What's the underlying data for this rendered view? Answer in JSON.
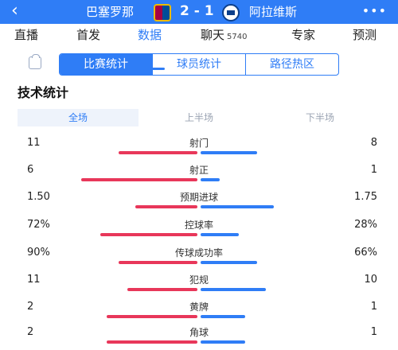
{
  "header": {
    "back_icon": "‹",
    "home_team": "巴塞罗那",
    "score": "2 - 1",
    "away_team": "阿拉维斯",
    "more": "•••",
    "home_badge_icon": "barcelona-crest-icon",
    "away_badge_icon": "alaves-crest-icon"
  },
  "tabs": [
    {
      "label": "直播"
    },
    {
      "label": "首发"
    },
    {
      "label": "数据"
    },
    {
      "label": "聊天",
      "count": "5740"
    },
    {
      "label": "专家"
    },
    {
      "label": "预测"
    }
  ],
  "subtabs": [
    "比赛统计",
    "球员统计",
    "路径热区"
  ],
  "section_title": "技术统计",
  "periods": [
    "全场",
    "上半场",
    "下半场"
  ],
  "stats": [
    {
      "name": "射门",
      "home": "11",
      "away": "8",
      "home_share": 0.58,
      "away_share": 0.42
    },
    {
      "name": "射正",
      "home": "6",
      "away": "1",
      "home_share": 0.86,
      "away_share": 0.14
    },
    {
      "name": "预期进球",
      "home": "1.50",
      "away": "1.75",
      "home_share": 0.46,
      "away_share": 0.54
    },
    {
      "name": "控球率",
      "home": "72%",
      "away": "28%",
      "home_share": 0.72,
      "away_share": 0.28
    },
    {
      "name": "传球成功率",
      "home": "90%",
      "away": "66%",
      "home_share": 0.58,
      "away_share": 0.42
    },
    {
      "name": "犯规",
      "home": "11",
      "away": "10",
      "home_share": 0.52,
      "away_share": 0.48
    },
    {
      "name": "黄牌",
      "home": "2",
      "away": "1",
      "home_share": 0.67,
      "away_share": 0.33
    },
    {
      "name": "角球",
      "home": "2",
      "away": "1",
      "home_share": 0.67,
      "away_share": 0.33
    }
  ],
  "colors": {
    "accent": "#2f7df6",
    "home_bar": "#e8375a",
    "away_bar": "#2f7df6"
  }
}
